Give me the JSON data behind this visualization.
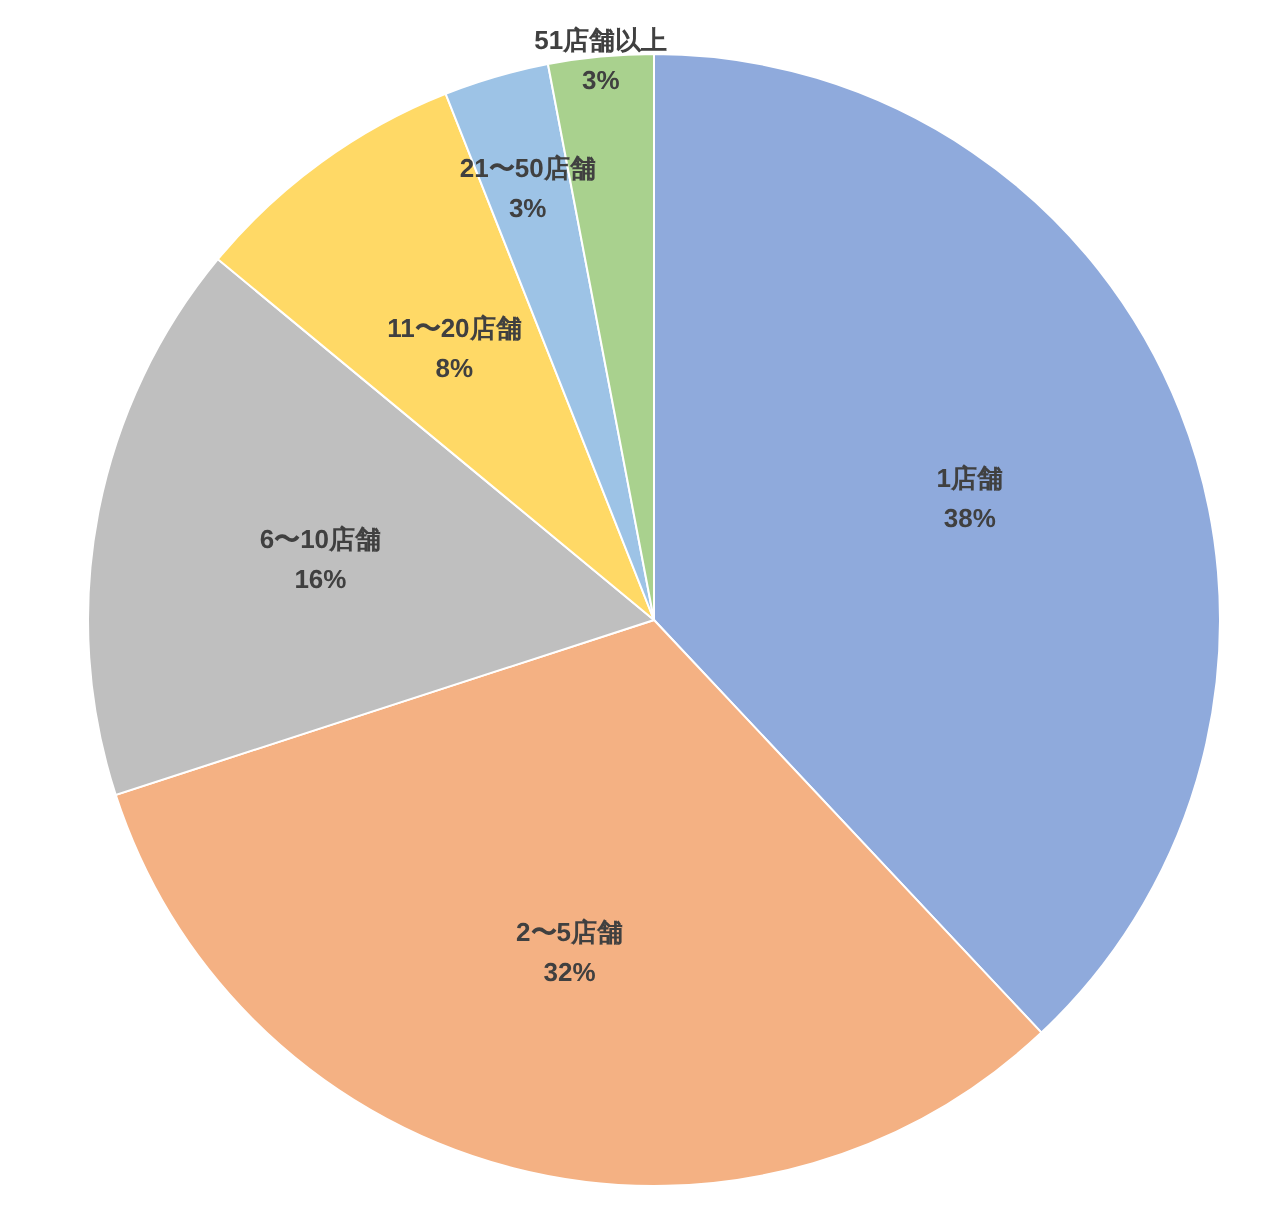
{
  "chart_data": {
    "type": "pie",
    "categories": [
      "1店舗",
      "2〜5店舗",
      "6〜10店舗",
      "11〜20店舗",
      "21〜50店舗",
      "51店舗以上"
    ],
    "values": [
      38,
      32,
      16,
      8,
      3,
      3
    ],
    "value_labels": [
      "38%",
      "32%",
      "16%",
      "8%",
      "3%",
      "3%"
    ],
    "colors": [
      "#8faadc",
      "#f4b183",
      "#bfbfbf",
      "#ffd966",
      "#9dc3e6",
      "#a9d18e"
    ],
    "legend": false
  }
}
